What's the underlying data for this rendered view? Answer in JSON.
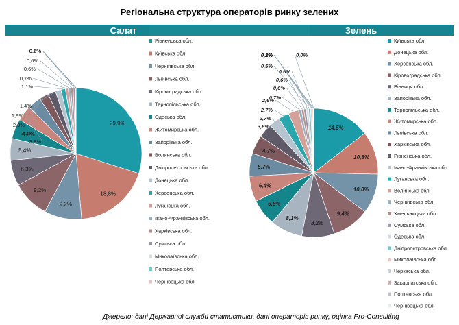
{
  "title": "Регіональна структура операторів ринку зелених",
  "source": "Джерело: дані Державної служби статистики, дані операторів ринку, оцінка Pro-Consulting",
  "chart_data": [
    {
      "type": "pie",
      "title": "Салат",
      "slices": [
        {
          "label": "Рівненська обл.",
          "value": 29.9,
          "color": "#1b9ba8",
          "data_label": "29,9%"
        },
        {
          "label": "Київська обл.",
          "value": 18.8,
          "color": "#c67c6f",
          "data_label": "18,8%"
        },
        {
          "label": "Чернігівська обл.",
          "value": 9.2,
          "color": "#7593a8",
          "data_label": "9,2%"
        },
        {
          "label": "Львівська обл.",
          "value": 9.2,
          "color": "#8c6568",
          "data_label": "9,2%"
        },
        {
          "label": "Кіровоградська обл.",
          "value": 6.3,
          "color": "#6e6776",
          "data_label": "6,3%"
        },
        {
          "label": "Тернопільська обл.",
          "value": 5.4,
          "color": "#a8b4bf",
          "data_label": "5,4%"
        },
        {
          "label": "Одеська обл.",
          "value": 4.9,
          "color": "#14868b",
          "data_label": "4,9%"
        },
        {
          "label": "Житомирська обл.",
          "value": 3.8,
          "color": "#c9857b",
          "data_label": "3,8%"
        },
        {
          "label": "Запорізька обл.",
          "value": 3.3,
          "color": "#6a8ba1",
          "data_label": "3,3%"
        },
        {
          "label": "Волинська обл.",
          "value": 2.3,
          "color": "#7e5a5f",
          "data_label": "2,3%"
        },
        {
          "label": "Дніпропетровська обл.",
          "value": 1.9,
          "color": "#5f5a68",
          "data_label": "1,9%"
        },
        {
          "label": "Донецька обл.",
          "value": 1.4,
          "color": "#b5c4cf",
          "data_label": "1,4%"
        },
        {
          "label": "Херсонська обл.",
          "value": 1.1,
          "color": "#2aa6ad",
          "data_label": "1,1%"
        },
        {
          "label": "Луганська обл.",
          "value": 0.7,
          "color": "#d4a199",
          "data_label": "0,7%"
        },
        {
          "label": "Івано-Франківська обл.",
          "value": 0.6,
          "color": "#9aafbf",
          "data_label": "0,6%"
        },
        {
          "label": "Харківська обл.",
          "value": 0.6,
          "color": "#b48e90",
          "data_label": "0,6%"
        },
        {
          "label": "Сумська обл.",
          "value": 0.5,
          "color": "#9b97a5",
          "data_label": "0,5%"
        },
        {
          "label": "Миколаївська обл.",
          "value": 0.2,
          "color": "#d5dde3",
          "data_label": "0,2%"
        },
        {
          "label": "Полтавська обл.",
          "value": 0.0,
          "color": "#7bc6cb",
          "data_label": "0,0%"
        },
        {
          "label": "Чернівецька обл.",
          "value": 0.0,
          "color": "#e6c7c2",
          "data_label": "0,0%"
        }
      ]
    },
    {
      "type": "pie",
      "title": "Зелень",
      "slices": [
        {
          "label": "Київська обл.",
          "value": 14.5,
          "color": "#1b9ba8",
          "data_label": "14,5%"
        },
        {
          "label": "Донецька обл.",
          "value": 10.8,
          "color": "#c67c6f",
          "data_label": "10,8%"
        },
        {
          "label": "Херсонська обл.",
          "value": 10.0,
          "color": "#7593a8",
          "data_label": "10,0%"
        },
        {
          "label": "Кіровоградська обл.",
          "value": 9.4,
          "color": "#8c6568",
          "data_label": "9,4%"
        },
        {
          "label": "Вінниця обл.",
          "value": 8.2,
          "color": "#6e6776",
          "data_label": "8,2%"
        },
        {
          "label": "Запорізька обл.",
          "value": 8.1,
          "color": "#a8b4bf",
          "data_label": "8,1%"
        },
        {
          "label": "Тернопільська обл.",
          "value": 6.6,
          "color": "#14868b",
          "data_label": "6,6%"
        },
        {
          "label": "Житомирська обл.",
          "value": 6.4,
          "color": "#c9857b",
          "data_label": "6,4%"
        },
        {
          "label": "Львівська обл.",
          "value": 5.7,
          "color": "#6a8ba1",
          "data_label": "5,7%"
        },
        {
          "label": "Харківська обл.",
          "value": 4.7,
          "color": "#7e5a5f",
          "data_label": "4,7%"
        },
        {
          "label": "Рівненська обл.",
          "value": 3.6,
          "color": "#5f5a68",
          "data_label": "3,6%"
        },
        {
          "label": "Івано-Франківська обл.",
          "value": 2.7,
          "color": "#b5c4cf",
          "data_label": "2,7%"
        },
        {
          "label": "Луганська обл.",
          "value": 2.7,
          "color": "#2aa6ad",
          "data_label": "2,7%"
        },
        {
          "label": "Волинська обл.",
          "value": 2.6,
          "color": "#d4a199",
          "data_label": "2,6%"
        },
        {
          "label": "Чернігівська обл.",
          "value": 0.7,
          "color": "#9aafbf",
          "data_label": "0,7%"
        },
        {
          "label": "Хмельницька обл.",
          "value": 0.6,
          "color": "#b48e90",
          "data_label": "0,6%"
        },
        {
          "label": "Сумська обл.",
          "value": 0.6,
          "color": "#9b97a5",
          "data_label": "0,6%"
        },
        {
          "label": "Одеська обл.",
          "value": 0.6,
          "color": "#d5dde3",
          "data_label": "0,6%"
        },
        {
          "label": "Дніпропетровська обл.",
          "value": 0.5,
          "color": "#7bc6cb",
          "data_label": "0,5%"
        },
        {
          "label": "Миколаївська обл.",
          "value": 0.3,
          "color": "#e6c7c2",
          "data_label": "0,3%"
        },
        {
          "label": "Черкаська обл.",
          "value": 0.2,
          "color": "#c8d5df",
          "data_label": "0,2%"
        },
        {
          "label": "Закарпатська обл.",
          "value": 0.2,
          "color": "#cdb1b2",
          "data_label": "0,2%"
        },
        {
          "label": "Полтавська обл.",
          "value": 0.1,
          "color": "#c1bfc8",
          "data_label": "0,1%"
        },
        {
          "label": "Чернівецька обл.",
          "value": 0.0,
          "color": "#e9eef1",
          "data_label": "0,0%"
        }
      ]
    }
  ]
}
